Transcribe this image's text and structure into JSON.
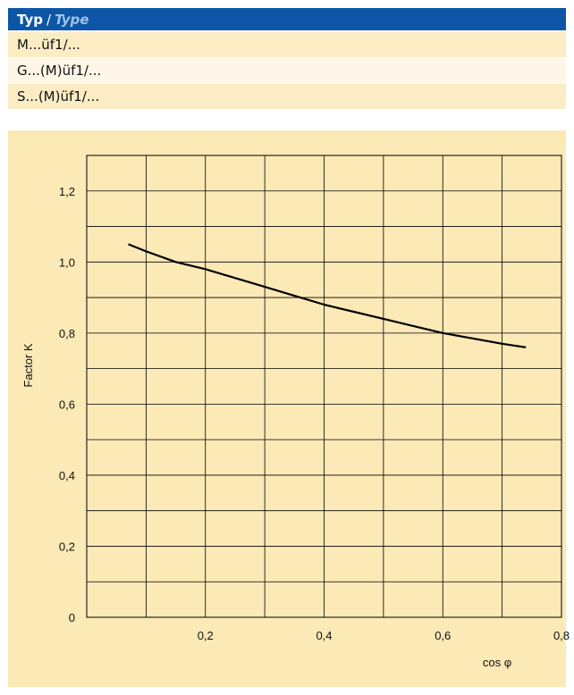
{
  "header": {
    "typ": "Typ",
    "sep": "/",
    "type": "Type"
  },
  "rows": [
    "M...üf1/...",
    "G...(M)üf1/...",
    "S...(M)üf1/..."
  ],
  "chart_data": {
    "type": "line",
    "xlabel": "cos φ",
    "ylabel": "Factor K",
    "xlim": [
      0,
      0.8
    ],
    "ylim": [
      0,
      1.3
    ],
    "xticks": [
      "0,2",
      "0,4",
      "0,6",
      "0,8"
    ],
    "yticks": [
      "0",
      "0,2",
      "0,4",
      "0,6",
      "0,8",
      "1,0",
      "1,2"
    ],
    "grid": true,
    "series": [
      {
        "x": [
          0.07,
          0.1,
          0.15,
          0.2,
          0.25,
          0.3,
          0.35,
          0.4,
          0.45,
          0.5,
          0.55,
          0.6,
          0.65,
          0.7,
          0.74
        ],
        "y": [
          1.05,
          1.03,
          1.0,
          0.98,
          0.955,
          0.93,
          0.905,
          0.88,
          0.86,
          0.84,
          0.82,
          0.8,
          0.785,
          0.77,
          0.76
        ],
        "color": "#000000"
      }
    ]
  }
}
